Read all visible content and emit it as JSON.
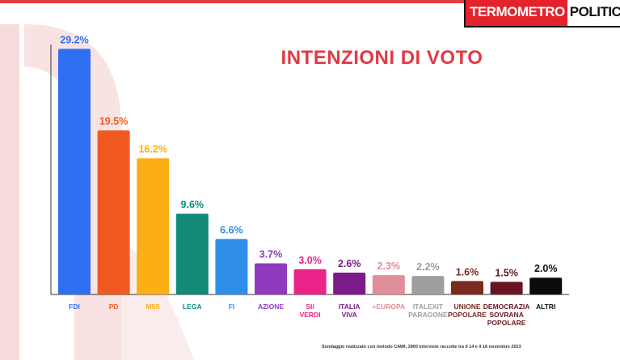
{
  "branding": {
    "logo_part1": "TERMOMETRO",
    "logo_part2": "POLITICO",
    "accent_color": "#e4222b"
  },
  "chart_data": {
    "type": "bar",
    "title": "INTENZIONI DI VOTO",
    "unit": "%",
    "categories": [
      "FDI",
      "PD",
      "M5S",
      "LEGA",
      "FI",
      "AZIONE",
      "SI/ VERDI",
      "ITALIA VIVA",
      "+EUROPA",
      "ITALEXIT PARAGONE",
      "UNIONE POPOLARE",
      "DEMOCRAZIA SOVRANA POPOLARE",
      "ALTRI"
    ],
    "values": [
      29.2,
      19.5,
      16.2,
      9.6,
      6.6,
      3.7,
      3.0,
      2.6,
      2.3,
      2.2,
      1.6,
      1.5,
      2.0
    ],
    "value_labels": [
      "29.2%",
      "19.5%",
      "16.2%",
      "9.6%",
      "6.6%",
      "3.7%",
      "3.0%",
      "2.6%",
      "2.3%",
      "2.2%",
      "1.6%",
      "1.5%",
      "2.0%"
    ],
    "tick_label_lines": [
      [
        "FDI"
      ],
      [
        "PD"
      ],
      [
        "M5S"
      ],
      [
        "LEGA"
      ],
      [
        "FI"
      ],
      [
        "AZIONE"
      ],
      [
        "SI/",
        "VERDI"
      ],
      [
        "ITALIA",
        "VIVA"
      ],
      [
        "+EUROPA"
      ],
      [
        "ITALEXIT",
        "PARAGONE"
      ],
      [
        "UNIONE",
        "POPOLARE"
      ],
      [
        "DEMOCRAZIA",
        "SOVRANA",
        "POPOLARE"
      ],
      [
        "ALTRI"
      ]
    ],
    "colors": [
      "#2f6ff2",
      "#f05a22",
      "#fcae17",
      "#13897a",
      "#2f8fe8",
      "#8e3bbe",
      "#ea2389",
      "#7b1a8a",
      "#e08e9a",
      "#9e9e9e",
      "#7a2a1e",
      "#6a1522",
      "#0b0b0b"
    ],
    "label_colors": [
      "#2f6ff2",
      "#f05a22",
      "#fcae17",
      "#13897a",
      "#2f8fe8",
      "#8e3bbe",
      "#ea2389",
      "#7b1a8a",
      "#e08e9a",
      "#9e9e9e",
      "#7a2a1e",
      "#6a1522",
      "#0b0b0b"
    ],
    "ylim": [
      0,
      30
    ],
    "grid": false,
    "legend": "none"
  },
  "footnote": "Sondaggio realizzato con metodo CAWI, 3900 interviste raccolte tra il 14 e il 16 novembre 2023"
}
